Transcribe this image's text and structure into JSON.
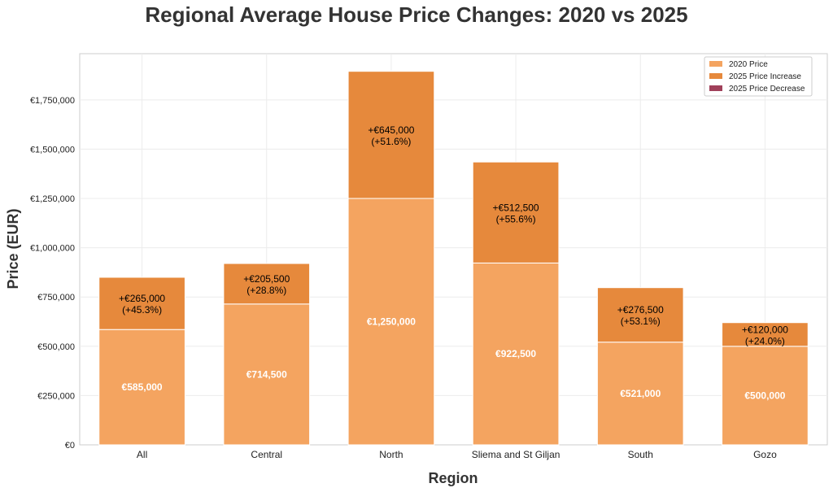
{
  "chart_data": {
    "type": "bar",
    "stacked": true,
    "title": "Regional Average House Price Changes: 2020 vs 2025",
    "xlabel": "Region",
    "ylabel": "Price (EUR)",
    "ylim": [
      0,
      1984500
    ],
    "yticks": [
      0,
      250000,
      500000,
      750000,
      1000000,
      1250000,
      1500000,
      1750000
    ],
    "ytick_labels": [
      "€0",
      "€250,000",
      "€500,000",
      "€750,000",
      "€1,000,000",
      "€1,250,000",
      "€1,500,000",
      "€1,750,000"
    ],
    "grid": true,
    "legend_position": "top-right",
    "categories": [
      "All",
      "Central",
      "North",
      "Sliema and St Giljan",
      "South",
      "Gozo"
    ],
    "series": [
      {
        "name": "2020 Price",
        "color": "#F4A460",
        "values": [
          585000,
          714500,
          1250000,
          922500,
          521000,
          500000
        ],
        "labels": [
          "€585,000",
          "€714,500",
          "€1,250,000",
          "€922,500",
          "€521,000",
          "€500,000"
        ]
      },
      {
        "name": "2025 Price Increase",
        "color": "#E6893C",
        "values": [
          265000,
          205500,
          645000,
          512500,
          276500,
          120000
        ],
        "labels_line1": [
          "+€265,000",
          "+€205,500",
          "+€645,000",
          "+€512,500",
          "+€276,500",
          "+€120,000"
        ],
        "labels_line2": [
          "(+45.3%)",
          "(+28.8%)",
          "(+51.6%)",
          "(+55.6%)",
          "(+53.1%)",
          "(+24.0%)"
        ]
      },
      {
        "name": "2025 Price Decrease",
        "color": "#A0405A",
        "values": [
          0,
          0,
          0,
          0,
          0,
          0
        ]
      }
    ]
  }
}
